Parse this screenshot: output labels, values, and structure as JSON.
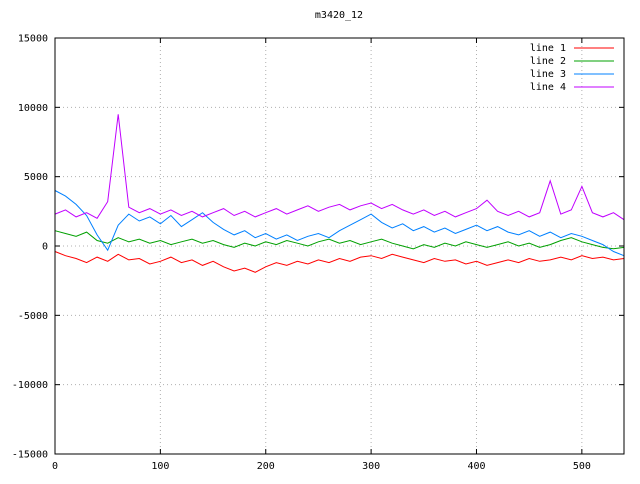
{
  "chart_data": {
    "type": "line",
    "title": "m3420_12",
    "xlabel": "",
    "ylabel": "",
    "xlim": [
      0,
      540
    ],
    "ylim": [
      -15000,
      15000
    ],
    "xticks": [
      0,
      100,
      200,
      300,
      400,
      500
    ],
    "yticks": [
      -15000,
      -10000,
      -5000,
      0,
      5000,
      10000,
      15000
    ],
    "grid": true,
    "grid_style": "dotted",
    "legend_position": "top-right",
    "background_color": "#ffffff",
    "border_color": "#000000",
    "grid_color": "#b0b0b0",
    "x": [
      0,
      10,
      20,
      30,
      40,
      50,
      60,
      70,
      80,
      90,
      100,
      110,
      120,
      130,
      140,
      150,
      160,
      170,
      180,
      190,
      200,
      210,
      220,
      230,
      240,
      250,
      260,
      270,
      280,
      290,
      300,
      310,
      320,
      330,
      340,
      350,
      360,
      370,
      380,
      390,
      400,
      410,
      420,
      430,
      440,
      450,
      460,
      470,
      480,
      490,
      500,
      510,
      520,
      530,
      540
    ],
    "series": [
      {
        "name": "line 1",
        "color": "#ff0000",
        "values": [
          -400,
          -700,
          -900,
          -1200,
          -800,
          -1100,
          -600,
          -1000,
          -900,
          -1300,
          -1100,
          -800,
          -1200,
          -1000,
          -1400,
          -1100,
          -1500,
          -1800,
          -1600,
          -1900,
          -1500,
          -1200,
          -1400,
          -1100,
          -1300,
          -1000,
          -1200,
          -900,
          -1100,
          -800,
          -700,
          -900,
          -600,
          -800,
          -1000,
          -1200,
          -900,
          -1100,
          -1000,
          -1300,
          -1100,
          -1400,
          -1200,
          -1000,
          -1200,
          -900,
          -1100,
          -1000,
          -800,
          -1000,
          -700,
          -900,
          -800,
          -1000,
          -900
        ]
      },
      {
        "name": "line 2",
        "color": "#00a000",
        "values": [
          1100,
          900,
          700,
          1000,
          400,
          200,
          600,
          300,
          500,
          200,
          400,
          100,
          300,
          500,
          200,
          400,
          100,
          -100,
          200,
          0,
          300,
          100,
          400,
          200,
          0,
          300,
          500,
          200,
          400,
          100,
          300,
          500,
          200,
          0,
          -200,
          100,
          -100,
          200,
          0,
          300,
          100,
          -100,
          100,
          300,
          0,
          200,
          -100,
          100,
          400,
          600,
          300,
          100,
          -100,
          -200,
          -100
        ]
      },
      {
        "name": "line 3",
        "color": "#0080ff",
        "values": [
          4000,
          3600,
          3000,
          2200,
          800,
          -300,
          1500,
          2300,
          1800,
          2100,
          1600,
          2200,
          1400,
          1900,
          2400,
          1700,
          1200,
          800,
          1100,
          600,
          900,
          500,
          800,
          400,
          700,
          900,
          600,
          1100,
          1500,
          1900,
          2300,
          1700,
          1300,
          1600,
          1100,
          1400,
          1000,
          1300,
          900,
          1200,
          1500,
          1100,
          1400,
          1000,
          800,
          1100,
          700,
          1000,
          600,
          900,
          700,
          400,
          100,
          -400,
          -700
        ]
      },
      {
        "name": "line 4",
        "color": "#c000ff",
        "values": [
          2300,
          2600,
          2100,
          2400,
          2000,
          3200,
          9500,
          2800,
          2400,
          2700,
          2300,
          2600,
          2200,
          2500,
          2100,
          2400,
          2700,
          2200,
          2500,
          2100,
          2400,
          2700,
          2300,
          2600,
          2900,
          2500,
          2800,
          3000,
          2600,
          2900,
          3100,
          2700,
          3000,
          2600,
          2300,
          2600,
          2200,
          2500,
          2100,
          2400,
          2700,
          3300,
          2500,
          2200,
          2500,
          2100,
          2400,
          4700,
          2300,
          2600,
          4300,
          2400,
          2100,
          2400,
          1900
        ]
      }
    ]
  }
}
